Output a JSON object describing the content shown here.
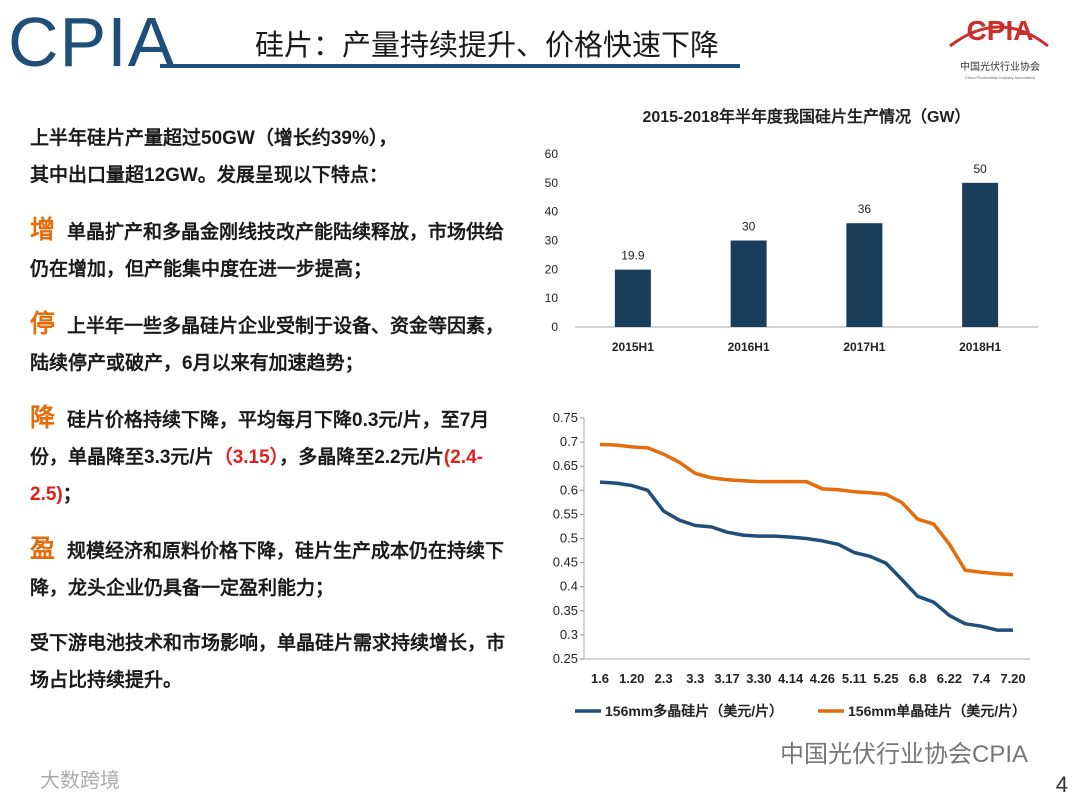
{
  "header": {
    "logo_text": "CPIA",
    "title": "硅片：产量持续提升、价格快速下降"
  },
  "brand": {
    "name": "CPIA",
    "subtitle": "中国光伏行业协会",
    "english": "China Photovoltaic Industry Association"
  },
  "intro": [
    "上半年硅片产量超过50GW（增长约39%），",
    "其中出口量超12GW。发展呈现以下特点："
  ],
  "points": [
    {
      "key": "增",
      "segments": [
        {
          "text": "单晶扩产和多晶金刚线技改产能陆续释放，市场供给仍在增加，但产能集中度在进一步提高；"
        }
      ]
    },
    {
      "key": "停",
      "segments": [
        {
          "text": "上半年一些多晶硅片企业受制于设备、资金等因素，陆续停产或破产，6月以来有加速趋势；"
        }
      ]
    },
    {
      "key": "降",
      "segments": [
        {
          "text": "硅片价格持续下降，平均每月下降0.3元/片，至7月份，单晶降至3.3元/片"
        },
        {
          "text": "（3.15）",
          "color": "#e0201c"
        },
        {
          "text": "，多晶降至2.2元/片"
        },
        {
          "text": "(2.4-2.5)",
          "color": "#e0201c"
        },
        {
          "text": "；"
        }
      ]
    },
    {
      "key": "盈",
      "segments": [
        {
          "text": "规模经济和原料价格下降，硅片生产成本仍在持续下降，龙头企业仍具备一定盈利能力；"
        }
      ]
    }
  ],
  "closing": "受下游电池技术和市场影响，单晶硅片需求持续增长，市场占比持续提升。",
  "watermarks": {
    "wechat": "中国光伏行业协会CPIA",
    "source": "大数跨境"
  },
  "page_number": "4",
  "chart_data": [
    {
      "type": "bar",
      "title": "2015-2018年半年度我国硅片生产情况（GW）",
      "categories": [
        "2015H1",
        "2016H1",
        "2017H1",
        "2018H1"
      ],
      "values": [
        19.9,
        30,
        36,
        50
      ],
      "color": "#1b3d5c",
      "ylim": [
        0,
        60
      ],
      "yticks": [
        0,
        10,
        20,
        30,
        40,
        50,
        60
      ],
      "grid": false
    },
    {
      "type": "line",
      "categories": [
        "1.6",
        null,
        "1.20",
        null,
        "2.3",
        null,
        "3.3",
        null,
        "3.17",
        null,
        "3.30",
        null,
        "4.14",
        null,
        "4.26",
        null,
        "5.11",
        null,
        "5.25",
        null,
        "6.8",
        null,
        "6.22",
        null,
        "7.4",
        null,
        "7.20"
      ],
      "series": [
        {
          "name": "156mm多晶硅片（美元/片）",
          "color": "#1f4e79",
          "values": [
            0.617,
            0.615,
            0.61,
            0.6,
            0.557,
            0.538,
            0.527,
            0.524,
            0.513,
            0.507,
            0.505,
            0.505,
            0.503,
            0.5,
            0.495,
            0.488,
            0.471,
            0.463,
            0.449,
            0.415,
            0.38,
            0.368,
            0.34,
            0.323,
            0.318,
            0.31,
            0.31
          ]
        },
        {
          "name": "156mm单晶硅片（美元/片）",
          "color": "#e46c0a",
          "values": [
            0.695,
            0.694,
            0.69,
            0.688,
            0.675,
            0.658,
            0.635,
            0.626,
            0.622,
            0.62,
            0.618,
            0.618,
            0.618,
            0.618,
            0.603,
            0.601,
            0.597,
            0.595,
            0.592,
            0.575,
            0.54,
            0.53,
            0.488,
            0.434,
            0.43,
            0.427,
            0.425
          ]
        }
      ],
      "ylim": [
        0.25,
        0.75
      ],
      "yticks": [
        0.25,
        0.3,
        0.35,
        0.4,
        0.45,
        0.5,
        0.55,
        0.6,
        0.65,
        0.7,
        0.75
      ],
      "grid": false,
      "legend": "bottom"
    }
  ]
}
